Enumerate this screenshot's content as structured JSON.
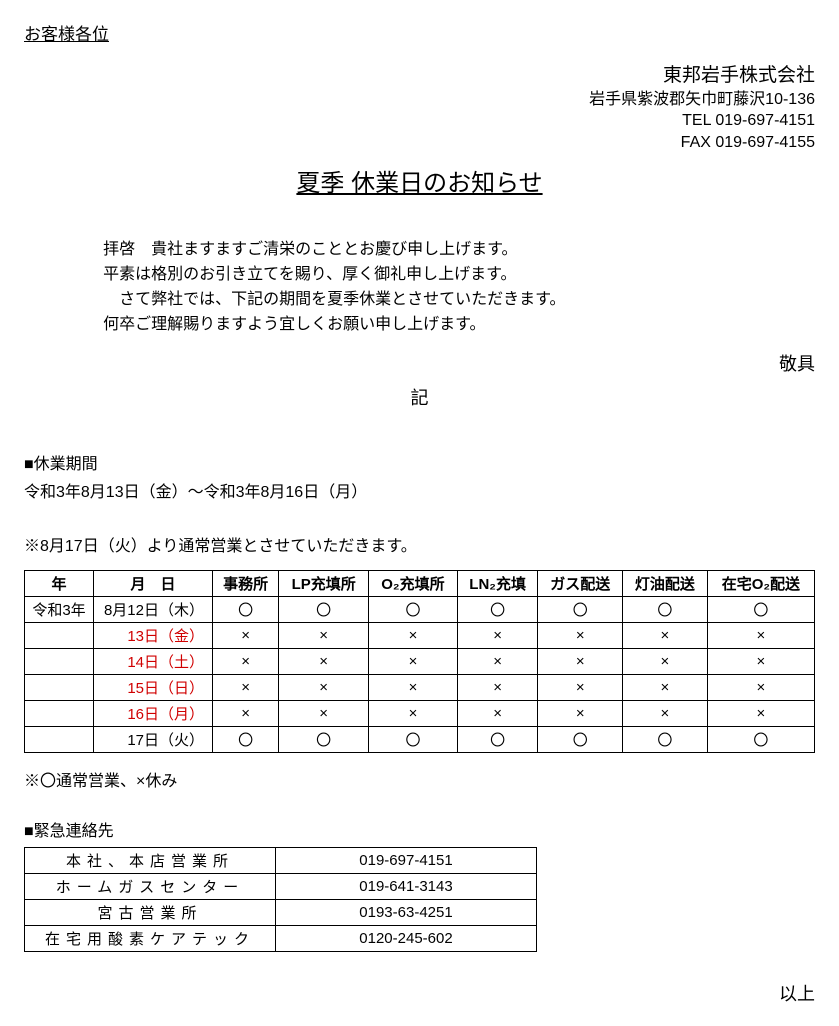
{
  "addressee": "お客様各位",
  "sender": {
    "company": "東邦岩手株式会社",
    "address": "岩手県紫波郡矢巾町藤沢10-136",
    "tel": "TEL 019-697-4151",
    "fax": "FAX 019-697-4155"
  },
  "title": "夏季 休業日のお知らせ",
  "greeting": {
    "l1": "拝啓　貴社ますますご清栄のこととお慶び申し上げます。",
    "l2": "平素は格別のお引き立てを賜り、厚く御礼申し上げます。",
    "l3": "　さて弊社では、下記の期間を夏季休業とさせていただきます。",
    "l4": "何卒ご理解賜りますよう宜しくお願い申し上げます。"
  },
  "keigu": "敬具",
  "ki": "記",
  "period_head": "■休業期間",
  "period_text": "令和3年8月13日（金）～令和3年8月16日（月）",
  "resume_note": "※8月17日（火）より通常営業とさせていただきます。",
  "schedule": {
    "headers": {
      "year": "年",
      "date": "月　日",
      "c1": "事務所",
      "c2": "LP充填所",
      "c3": "O₂充填所",
      "c4": "LN₂充填",
      "c5": "ガス配送",
      "c6": "灯油配送",
      "c7": "在宅O₂配送"
    },
    "rows": [
      {
        "year": "令和3年",
        "date": "8月12日（木）",
        "red": false,
        "cells": [
          "〇",
          "〇",
          "〇",
          "〇",
          "〇",
          "〇",
          "〇"
        ]
      },
      {
        "year": "",
        "date": "13日（金）",
        "red": true,
        "cells": [
          "×",
          "×",
          "×",
          "×",
          "×",
          "×",
          "×"
        ]
      },
      {
        "year": "",
        "date": "14日（土）",
        "red": true,
        "cells": [
          "×",
          "×",
          "×",
          "×",
          "×",
          "×",
          "×"
        ]
      },
      {
        "year": "",
        "date": "15日（日）",
        "red": true,
        "cells": [
          "×",
          "×",
          "×",
          "×",
          "×",
          "×",
          "×"
        ]
      },
      {
        "year": "",
        "date": "16日（月）",
        "red": true,
        "cells": [
          "×",
          "×",
          "×",
          "×",
          "×",
          "×",
          "×"
        ]
      },
      {
        "year": "",
        "date": "17日（火）",
        "red": false,
        "cells": [
          "〇",
          "〇",
          "〇",
          "〇",
          "〇",
          "〇",
          "〇"
        ]
      }
    ]
  },
  "legend": "※〇通常営業、×休み",
  "contact_head": "■緊急連絡先",
  "contacts": [
    {
      "office": "本社、本店営業所",
      "phone": "019-697-4151"
    },
    {
      "office": "ホームガスセンター",
      "phone": "019-641-3143"
    },
    {
      "office": "宮古営業所",
      "phone": "0193-63-4251"
    },
    {
      "office": "在宅用酸素ケアテック",
      "phone": "0120-245-602"
    }
  ],
  "ijou": "以上"
}
